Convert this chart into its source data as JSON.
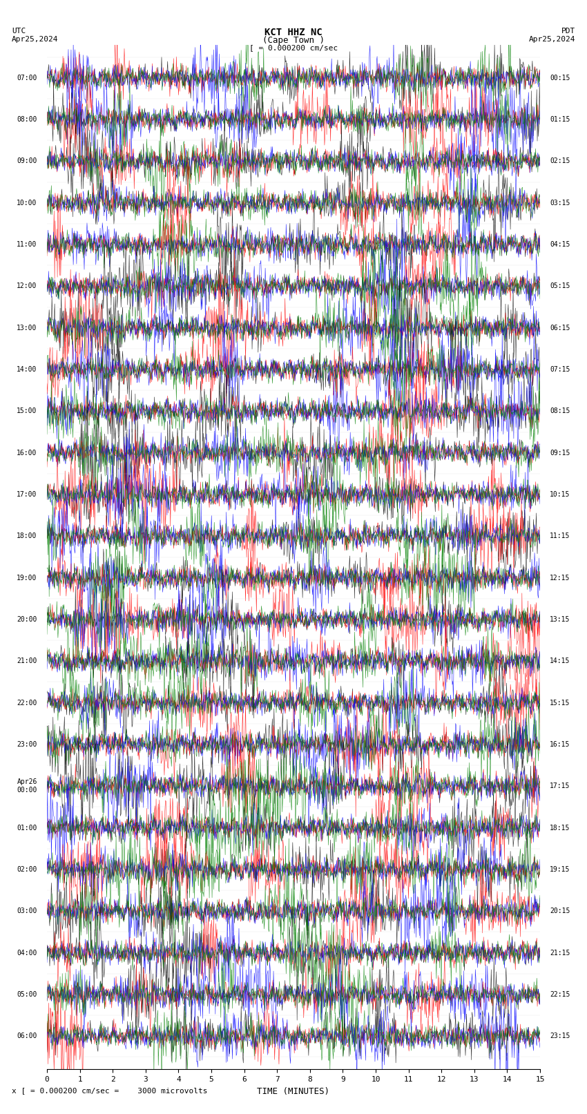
{
  "title_line1": "KCT HHZ NC",
  "title_line2": "(Cape Town )",
  "scale_label": "= 0.000200 cm/sec",
  "utc_label": "UTC",
  "date_left": "Apr25,2024",
  "pdt_label": "PDT",
  "date_right": "Apr25,2024",
  "xlabel": "TIME (MINUTES)",
  "footer": "= 0.000200 cm/sec =    3000 microvolts",
  "left_times": [
    "07:00",
    "08:00",
    "09:00",
    "10:00",
    "11:00",
    "12:00",
    "13:00",
    "14:00",
    "15:00",
    "16:00",
    "17:00",
    "18:00",
    "19:00",
    "20:00",
    "21:00",
    "22:00",
    "23:00",
    "Apr26\n00:00",
    "01:00",
    "02:00",
    "03:00",
    "04:00",
    "05:00",
    "06:00"
  ],
  "right_times": [
    "00:15",
    "01:15",
    "02:15",
    "03:15",
    "04:15",
    "05:15",
    "06:15",
    "07:15",
    "08:15",
    "09:15",
    "10:15",
    "11:15",
    "12:15",
    "13:15",
    "14:15",
    "15:15",
    "16:15",
    "17:15",
    "18:15",
    "19:15",
    "20:15",
    "21:15",
    "22:15",
    "23:15"
  ],
  "n_traces": 24,
  "n_points": 900,
  "colors": [
    "black",
    "red",
    "blue",
    "green"
  ],
  "bg_color": "white",
  "trace_amplitude": 0.35,
  "x_ticks": [
    0,
    1,
    2,
    3,
    4,
    5,
    6,
    7,
    8,
    9,
    10,
    11,
    12,
    13,
    14,
    15
  ],
  "fig_width": 8.5,
  "fig_height": 16.13
}
